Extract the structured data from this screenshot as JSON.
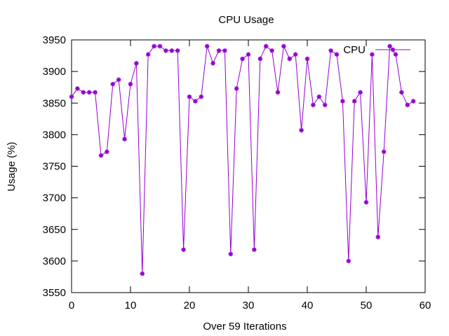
{
  "chart_data": {
    "type": "line",
    "title": "CPU Usage",
    "xlabel": "Over 59 Iterations",
    "ylabel": "Usage (%)",
    "xlim": [
      0,
      60
    ],
    "ylim": [
      3550,
      3950
    ],
    "xticks": [
      0,
      10,
      20,
      30,
      40,
      50,
      60
    ],
    "yticks": [
      3550,
      3600,
      3650,
      3700,
      3750,
      3800,
      3850,
      3900,
      3950
    ],
    "grid": false,
    "legend_position": "top-right",
    "series": [
      {
        "name": "CPU",
        "color": "#9400d3",
        "x": [
          0,
          1,
          2,
          3,
          4,
          5,
          6,
          7,
          8,
          9,
          10,
          11,
          12,
          13,
          14,
          15,
          16,
          17,
          18,
          19,
          20,
          21,
          22,
          23,
          24,
          25,
          26,
          27,
          28,
          29,
          30,
          31,
          32,
          33,
          34,
          35,
          36,
          37,
          38,
          39,
          40,
          41,
          42,
          43,
          44,
          45,
          46,
          47,
          48,
          49,
          50,
          51,
          52,
          53,
          54,
          55,
          56,
          57,
          58
        ],
        "values": [
          3860,
          3873,
          3867,
          3867,
          3867,
          3767,
          3773,
          3880,
          3887,
          3793,
          3880,
          3913,
          3580,
          3927,
          3940,
          3940,
          3933,
          3933,
          3933,
          3618,
          3860,
          3853,
          3860,
          3940,
          3913,
          3933,
          3933,
          3611,
          3873,
          3920,
          3927,
          3618,
          3920,
          3940,
          3933,
          3867,
          3940,
          3920,
          3927,
          3807,
          3920,
          3847,
          3860,
          3847,
          3933,
          3927,
          3853,
          3600,
          3853,
          3867,
          3693,
          3927,
          3638,
          3773,
          3940,
          3927,
          3867,
          3847,
          3853
        ]
      }
    ]
  }
}
